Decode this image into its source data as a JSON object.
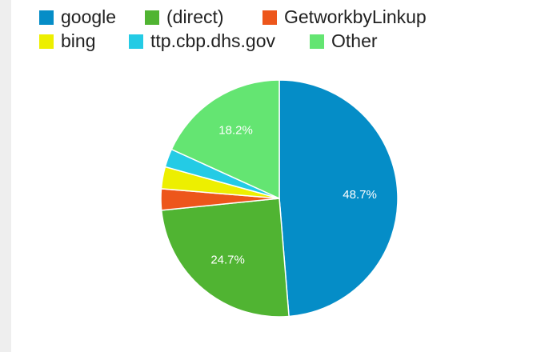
{
  "chart_data": {
    "type": "pie",
    "categories": [
      "google",
      "(direct)",
      "GetworkbyLinkup",
      "bing",
      "ttp.cbp.dhs.gov",
      "Other"
    ],
    "values": [
      48.7,
      24.7,
      2.9,
      3.0,
      2.5,
      18.2
    ],
    "value_labels": [
      "48.7%",
      "24.7%",
      null,
      null,
      null,
      "18.2%"
    ],
    "colors": [
      "#058dc7",
      "#50b432",
      "#ed561b",
      "#edef00",
      "#24cbe5",
      "#64e572"
    ],
    "legend": "top"
  }
}
